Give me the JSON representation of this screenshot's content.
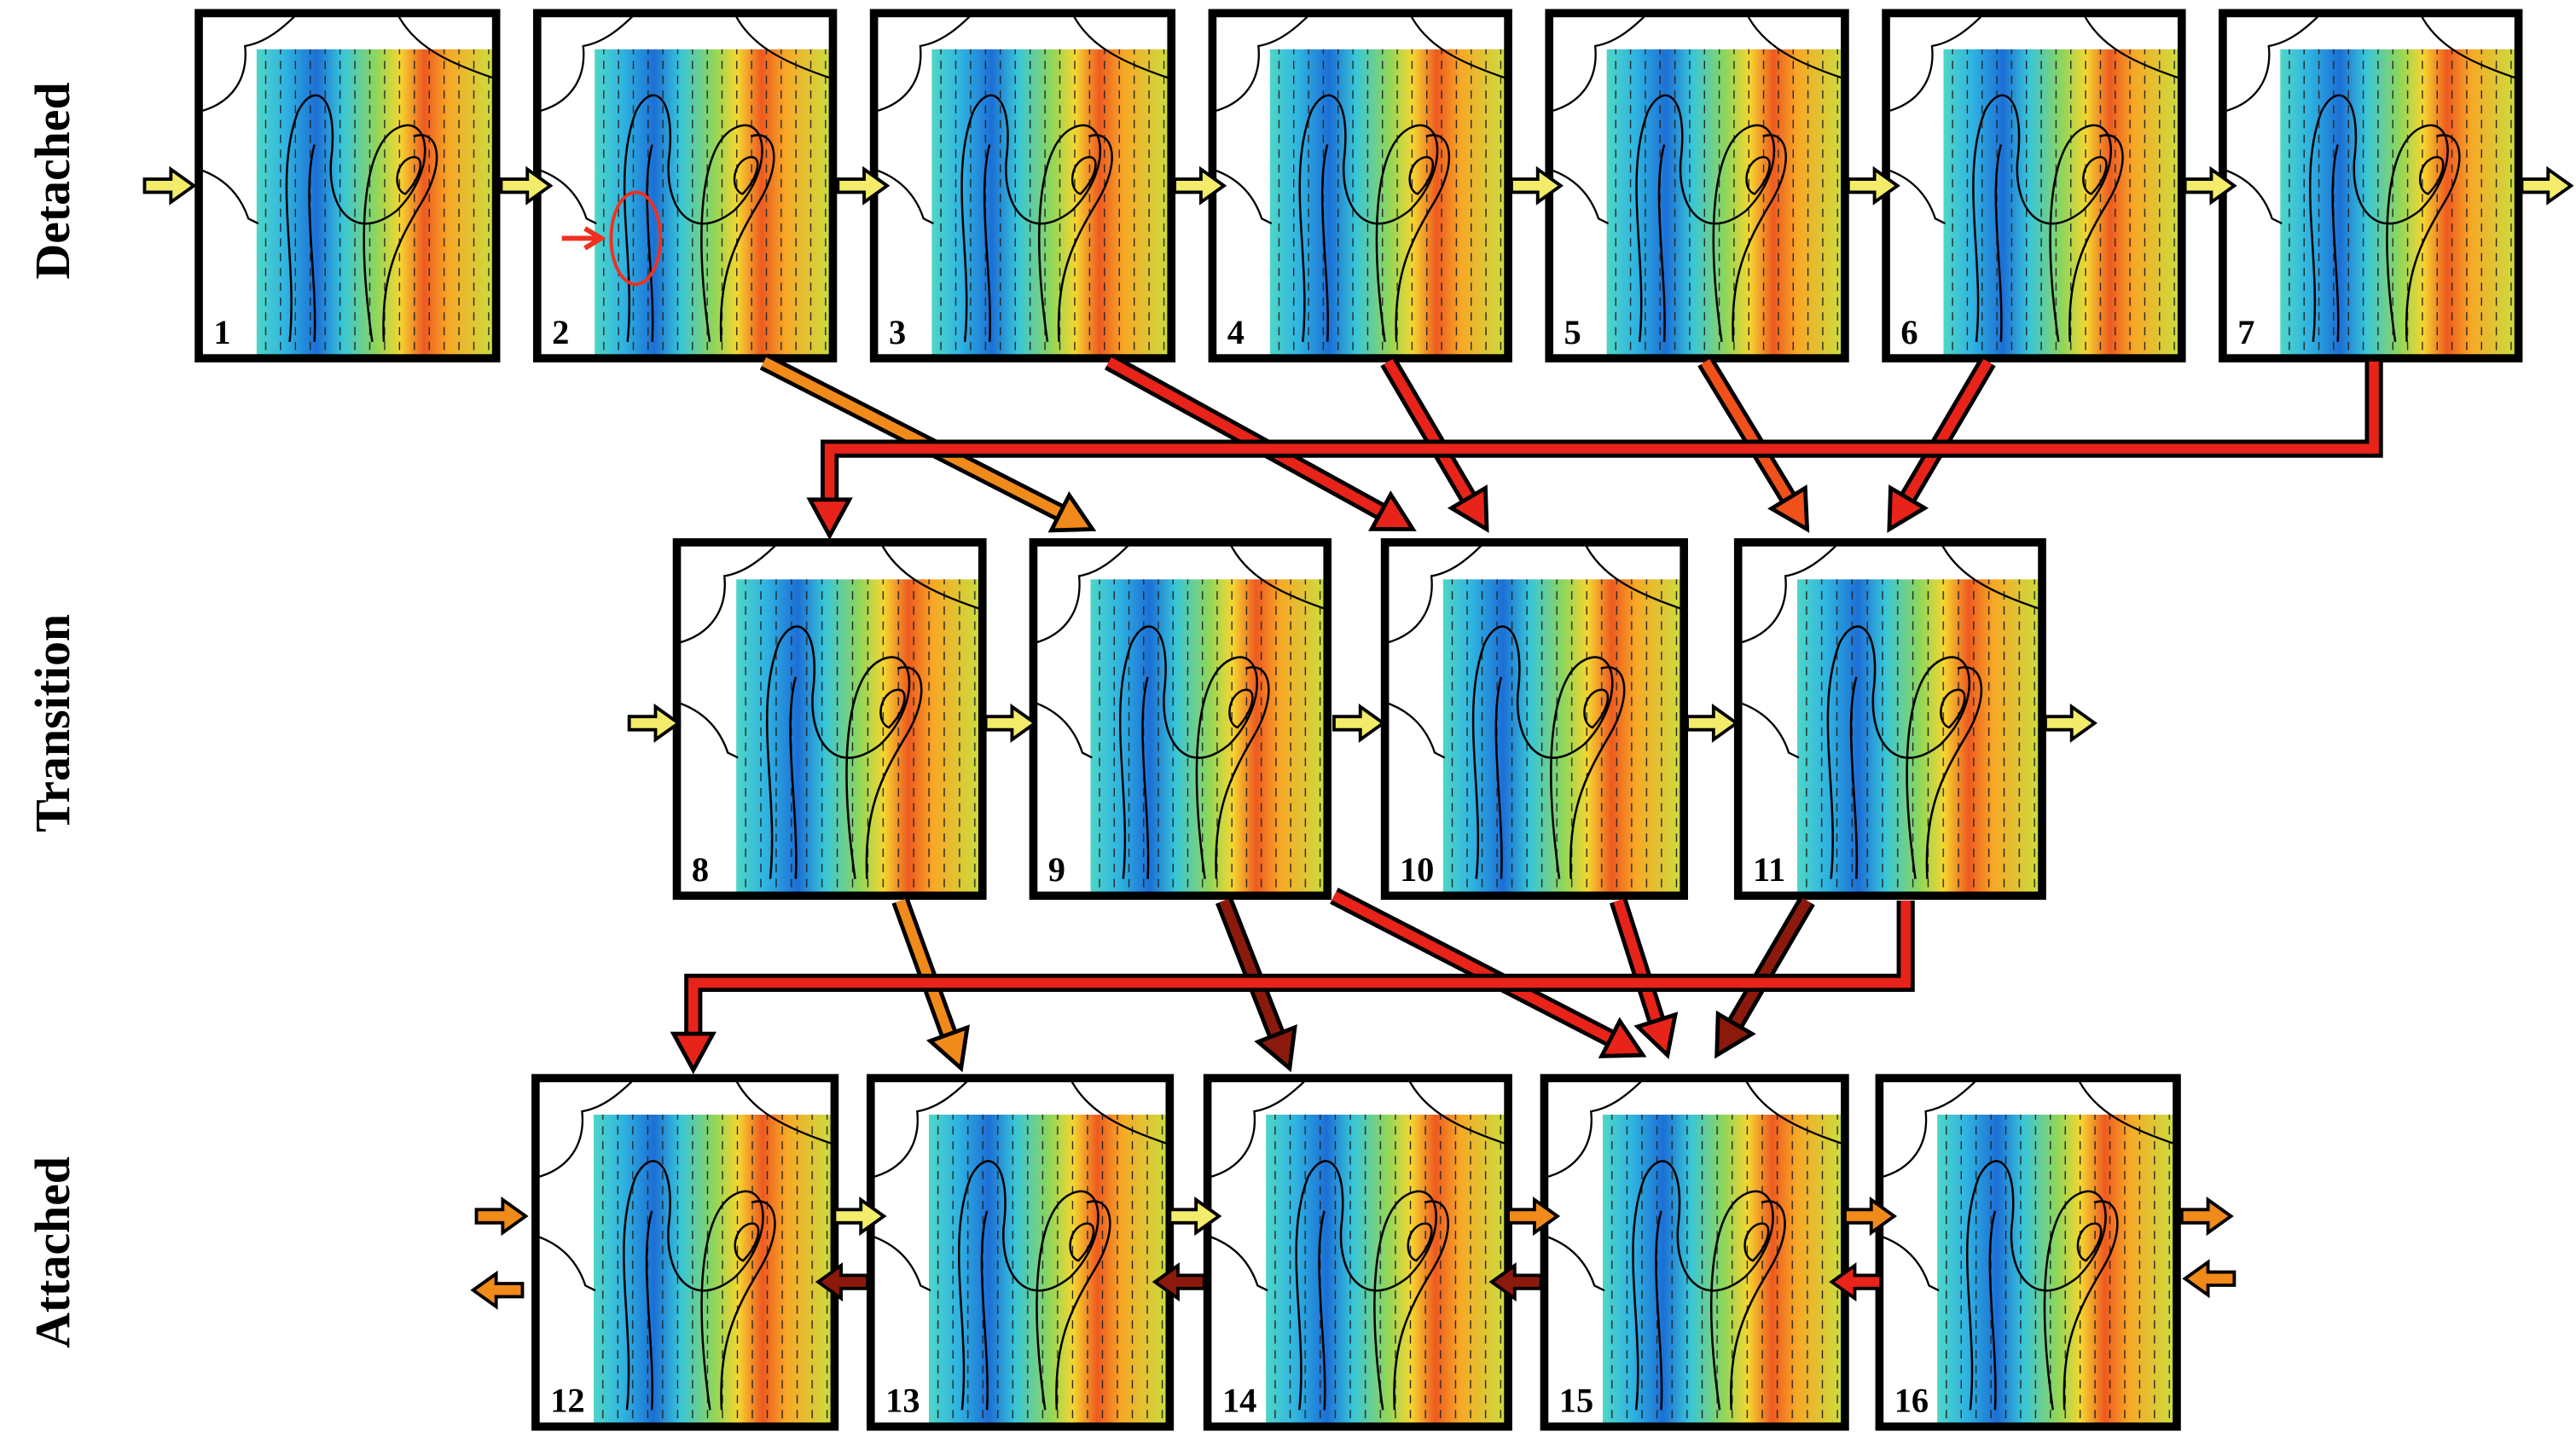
{
  "row_labels": [
    "Detached",
    "Transition",
    "Attached"
  ],
  "panels": [
    {
      "label": "1"
    },
    {
      "label": "2"
    },
    {
      "label": "3"
    },
    {
      "label": "4"
    },
    {
      "label": "5"
    },
    {
      "label": "6"
    },
    {
      "label": "7"
    },
    {
      "label": "8"
    },
    {
      "label": "9"
    },
    {
      "label": "10"
    },
    {
      "label": "11"
    },
    {
      "label": "12"
    },
    {
      "label": "13"
    },
    {
      "label": "14"
    },
    {
      "label": "15"
    },
    {
      "label": "16"
    }
  ]
}
